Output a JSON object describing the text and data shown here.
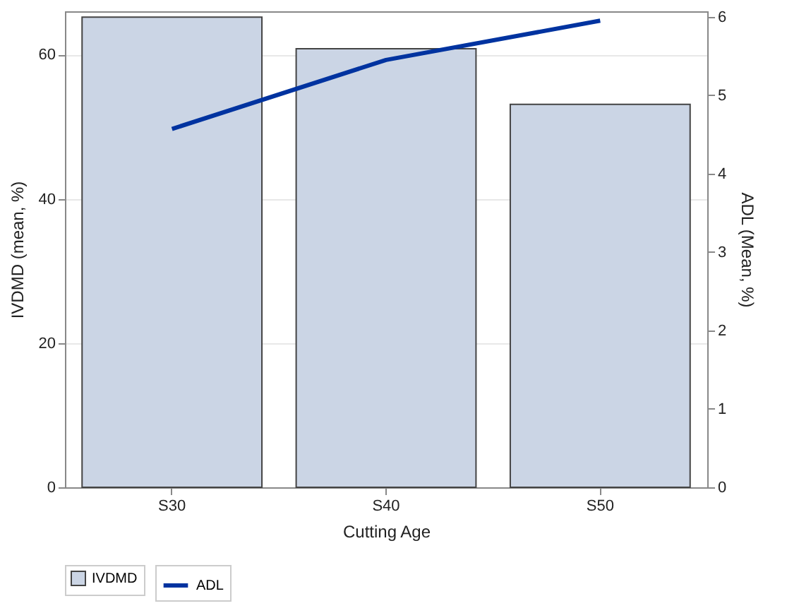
{
  "chart_data": {
    "type": "bar",
    "categories": [
      "S30",
      "S40",
      "S50"
    ],
    "xlabel": "Cutting Age",
    "ylabel": "IVDMD (mean, %)",
    "y2label": "ADL (Mean, %)",
    "series": [
      {
        "name": "IVDMD",
        "color": "#cbd5e5",
        "values": [
          65.2,
          60.8,
          53.1
        ]
      },
      {
        "name": "ADL",
        "type": "line",
        "axis": "y2",
        "color": "#0033a0",
        "values": [
          4.57,
          5.45,
          5.95
        ]
      }
    ],
    "ylim": [
      0,
      66
    ],
    "yticks": [
      0,
      20,
      40,
      60
    ],
    "y2lim": [
      0,
      6.07
    ],
    "y2ticks": [
      0,
      1,
      2,
      3,
      4,
      5,
      6
    ],
    "grid": "y",
    "legend": "bottom"
  }
}
